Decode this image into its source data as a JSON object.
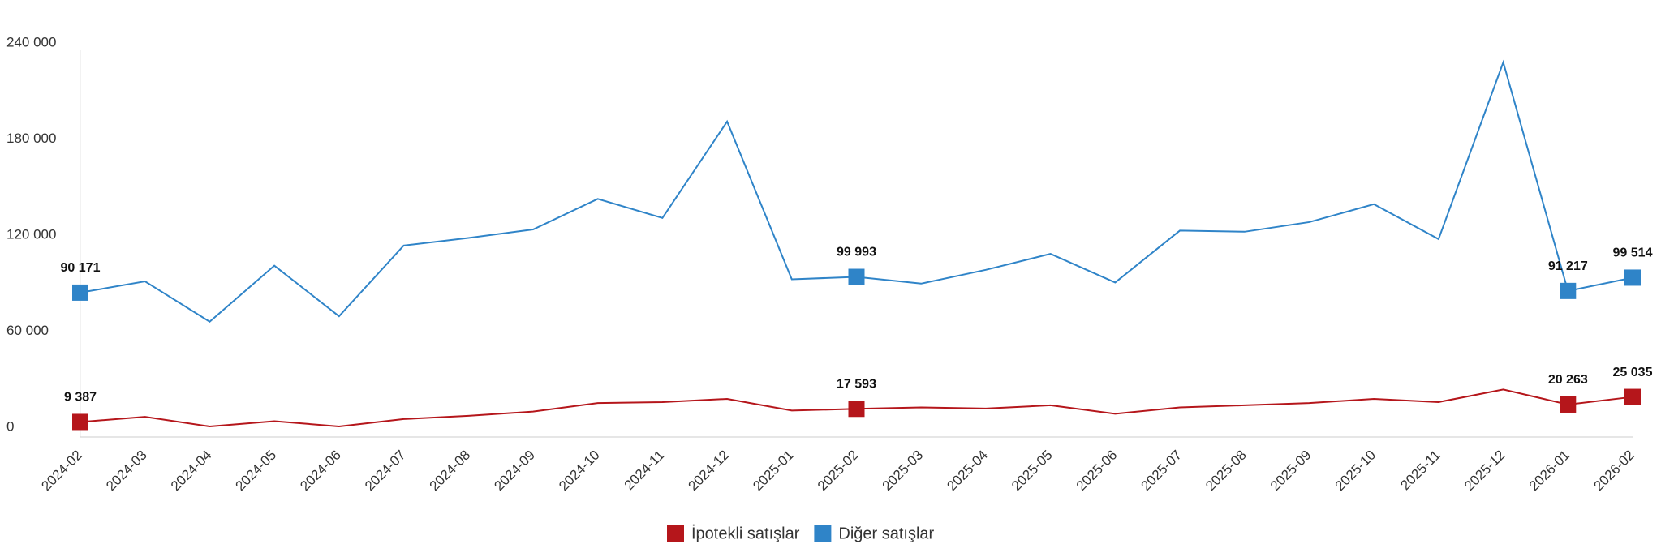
{
  "chart_data": {
    "type": "line",
    "categories": [
      "2024-02",
      "2024-03",
      "2024-04",
      "2024-05",
      "2024-06",
      "2024-07",
      "2024-08",
      "2024-09",
      "2024-10",
      "2024-11",
      "2024-12",
      "2025-01",
      "2025-02",
      "2025-03",
      "2025-04",
      "2025-05",
      "2025-06",
      "2025-07",
      "2025-08",
      "2025-09",
      "2025-10",
      "2025-11",
      "2025-12",
      "2026-01",
      "2026-02"
    ],
    "series": [
      {
        "name": "İpotekli satışlar",
        "color": "#b5161b",
        "values": [
          9387,
          12600,
          6600,
          9900,
          6600,
          11200,
          13200,
          15900,
          21200,
          21800,
          23800,
          16500,
          17593,
          18500,
          17800,
          19800,
          14500,
          18500,
          19800,
          21200,
          23800,
          21800,
          29700,
          20263,
          25035
        ],
        "value_labels": [
          "9 387",
          null,
          null,
          null,
          null,
          null,
          null,
          null,
          null,
          null,
          null,
          null,
          "17 593",
          null,
          null,
          null,
          null,
          null,
          null,
          null,
          null,
          null,
          null,
          "20 263",
          "25 035"
        ]
      },
      {
        "name": "Diğer satışlar",
        "color": "#2f84c8",
        "values": [
          90171,
          97200,
          72000,
          107000,
          75400,
          119600,
          124300,
          129600,
          148700,
          136800,
          197000,
          98500,
          99993,
          95800,
          104400,
          114400,
          96500,
          128900,
          128200,
          134200,
          145400,
          123600,
          234000,
          91217,
          99514
        ],
        "value_labels": [
          "90 171",
          null,
          null,
          null,
          null,
          null,
          null,
          null,
          null,
          null,
          null,
          null,
          "99 993",
          null,
          null,
          null,
          null,
          null,
          null,
          null,
          null,
          null,
          null,
          "91 217",
          "99 514"
        ]
      }
    ],
    "ylim": [
      0,
      240000
    ],
    "yticks": [
      0,
      {
        "value": 60000,
        "label": "60 000"
      },
      {
        "value": 120000,
        "label": "120 000"
      },
      {
        "value": 180000,
        "label": "180 000"
      },
      {
        "value": 240000,
        "label": "240 000"
      }
    ],
    "legend": "bottom"
  }
}
